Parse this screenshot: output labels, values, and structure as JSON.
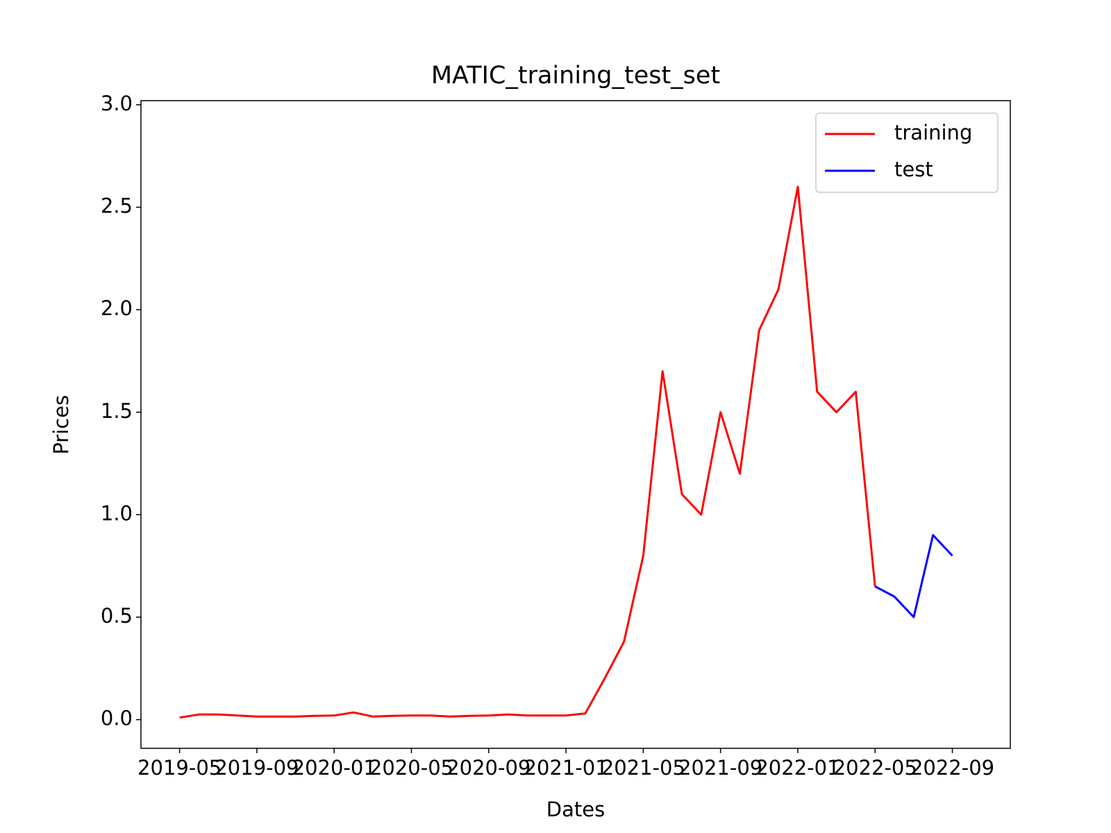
{
  "chart_data": {
    "type": "line",
    "title": "MATIC_training_test_set",
    "x_label": "Dates",
    "y_label": "Prices",
    "x": [
      "2019-05",
      "2019-06",
      "2019-07",
      "2019-08",
      "2019-09",
      "2019-10",
      "2019-11",
      "2019-12",
      "2020-01",
      "2020-02",
      "2020-03",
      "2020-04",
      "2020-05",
      "2020-06",
      "2020-07",
      "2020-08",
      "2020-09",
      "2020-10",
      "2020-11",
      "2020-12",
      "2021-01",
      "2021-02",
      "2021-03",
      "2021-04",
      "2021-05",
      "2021-06",
      "2021-07",
      "2021-08",
      "2021-09",
      "2021-10",
      "2021-11",
      "2021-12",
      "2022-01",
      "2022-02",
      "2022-03",
      "2022-04",
      "2022-05",
      "2022-06",
      "2022-07",
      "2022-08",
      "2022-09"
    ],
    "series": [
      {
        "name": "training",
        "color": "#ff0000",
        "values": [
          0.01,
          0.025,
          0.025,
          0.02,
          0.015,
          0.015,
          0.015,
          0.018,
          0.02,
          0.035,
          0.015,
          0.018,
          0.02,
          0.02,
          0.015,
          0.018,
          0.02,
          0.025,
          0.02,
          0.02,
          0.02,
          0.03,
          0.2,
          0.38,
          0.8,
          1.7,
          1.1,
          1.0,
          1.5,
          1.2,
          1.9,
          2.1,
          2.6,
          1.6,
          1.5,
          1.6,
          0.65,
          null,
          null,
          null,
          null
        ]
      },
      {
        "name": "test",
        "color": "#0000ff",
        "values": [
          null,
          null,
          null,
          null,
          null,
          null,
          null,
          null,
          null,
          null,
          null,
          null,
          null,
          null,
          null,
          null,
          null,
          null,
          null,
          null,
          null,
          null,
          null,
          null,
          null,
          null,
          null,
          null,
          null,
          null,
          null,
          null,
          null,
          null,
          null,
          null,
          0.65,
          0.6,
          0.5,
          0.9,
          0.8
        ]
      }
    ],
    "xlim": [
      "2019-03",
      "2022-12"
    ],
    "xticks": [
      "2019-05",
      "2019-09",
      "2020-01",
      "2020-05",
      "2020-09",
      "2021-01",
      "2021-05",
      "2021-09",
      "2022-01",
      "2022-05",
      "2022-09"
    ],
    "ylim": [
      -0.14,
      3.02
    ],
    "yticks": [
      {
        "value": 0,
        "label": "0.0"
      },
      {
        "value": 0.5,
        "label": "0.5"
      },
      {
        "value": 1,
        "label": "1.0"
      },
      {
        "value": 1.5,
        "label": "1.5"
      },
      {
        "value": 2,
        "label": "2.0"
      },
      {
        "value": 2.5,
        "label": "2.5"
      },
      {
        "value": 3,
        "label": "3.0"
      }
    ],
    "grid": false,
    "legend": "upper right"
  }
}
